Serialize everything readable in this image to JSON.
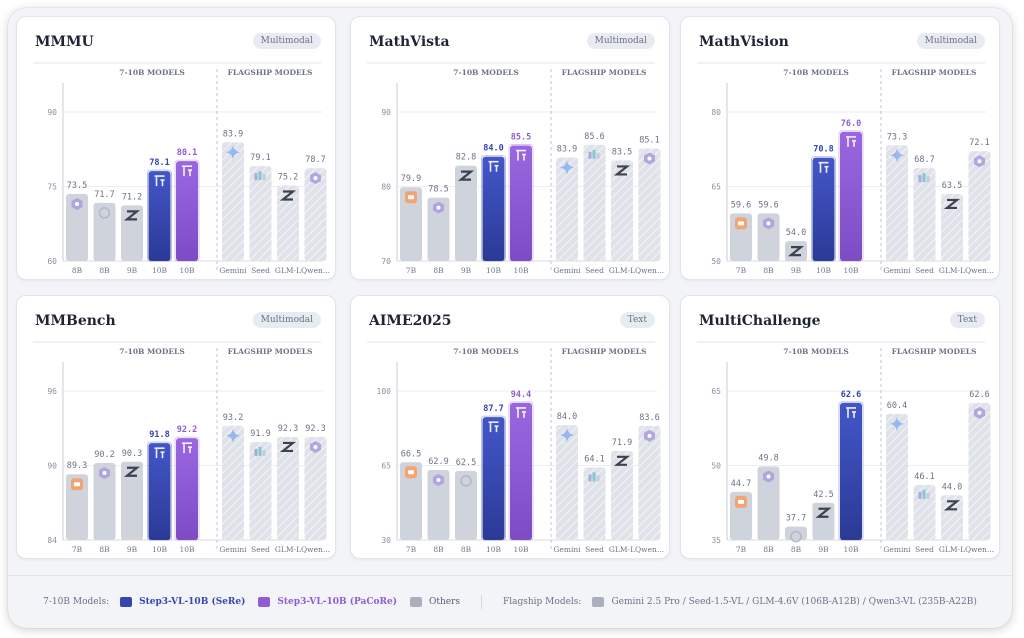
{
  "colors": {
    "sere": "#3546b0",
    "pacore": "#8f5cd6",
    "others": "#cfd3dc",
    "flagship": "#dfe2e9"
  },
  "legend": {
    "group1_label": "7-10B Models:",
    "sere_label": "Step3-VL-10B (SeRe)",
    "pacore_label": "Step3-VL-10B (PaCoRe)",
    "others_label": "Others",
    "group2_label": "Flagship Models:",
    "flagship_text": "Gemini 2.5 Pro / Seed-1.5-VL / GLM-4.6V (106B-A12B) / Qwen3-VL (235B-A22B)"
  },
  "chart_data": [
    {
      "title": "MMMU",
      "badge": "Multimodal",
      "type": "bar",
      "yticks": [
        60,
        75,
        90
      ],
      "ylim": [
        60,
        90
      ],
      "group_labels": [
        "7-10B MODELS",
        "FLAGSHIP MODELS"
      ],
      "bars": [
        {
          "label": "8B",
          "value": 73.5,
          "kind": "other",
          "icon": "qwen-icon"
        },
        {
          "label": "8B",
          "value": 71.7,
          "kind": "other",
          "icon": "intern-icon"
        },
        {
          "label": "9B",
          "value": 71.2,
          "kind": "other",
          "icon": "glm-icon"
        },
        {
          "label": "10B",
          "value": 78.1,
          "kind": "sere",
          "icon": "step-icon"
        },
        {
          "label": "10B",
          "value": 80.1,
          "kind": "pacore",
          "icon": "step-icon"
        },
        {
          "label": "Gemini",
          "value": 83.9,
          "kind": "flagship",
          "icon": "gemini-icon"
        },
        {
          "label": "Seed",
          "value": 79.1,
          "kind": "flagship",
          "icon": "seed-icon"
        },
        {
          "label": "GLM-L",
          "value": 75.2,
          "kind": "flagship",
          "icon": "glm-icon"
        },
        {
          "label": "Qwen...",
          "value": 78.7,
          "kind": "flagship",
          "icon": "qwen-icon"
        }
      ]
    },
    {
      "title": "MathVista",
      "badge": "Multimodal",
      "type": "bar",
      "yticks": [
        70,
        80,
        90
      ],
      "ylim": [
        70,
        90
      ],
      "group_labels": [
        "7-10B MODELS",
        "FLAGSHIP MODELS"
      ],
      "bars": [
        {
          "label": "7B",
          "value": 79.9,
          "kind": "other",
          "icon": "mimo-icon"
        },
        {
          "label": "8B",
          "value": 78.5,
          "kind": "other",
          "icon": "qwen-icon"
        },
        {
          "label": "9B",
          "value": 82.8,
          "kind": "other",
          "icon": "glm-icon"
        },
        {
          "label": "10B",
          "value": 84.0,
          "kind": "sere",
          "icon": "step-icon"
        },
        {
          "label": "10B",
          "value": 85.5,
          "kind": "pacore",
          "icon": "step-icon"
        },
        {
          "label": "Gemini",
          "value": 83.9,
          "kind": "flagship",
          "icon": "gemini-icon"
        },
        {
          "label": "Seed",
          "value": 85.6,
          "kind": "flagship",
          "icon": "seed-icon"
        },
        {
          "label": "GLM-L",
          "value": 83.5,
          "kind": "flagship",
          "icon": "glm-icon"
        },
        {
          "label": "Qwen...",
          "value": 85.1,
          "kind": "flagship",
          "icon": "qwen-icon"
        }
      ]
    },
    {
      "title": "MathVision",
      "badge": "Multimodal",
      "type": "bar",
      "yticks": [
        50,
        65,
        80
      ],
      "ylim": [
        50,
        80
      ],
      "group_labels": [
        "7-10B MODELS",
        "FLAGSHIP MODELS"
      ],
      "bars": [
        {
          "label": "7B",
          "value": 59.6,
          "kind": "other",
          "icon": "mimo-icon"
        },
        {
          "label": "8B",
          "value": 59.6,
          "kind": "other",
          "icon": "qwen-icon"
        },
        {
          "label": "9B",
          "value": 54.0,
          "kind": "other",
          "icon": "glm-icon"
        },
        {
          "label": "10B",
          "value": 70.8,
          "kind": "sere",
          "icon": "step-icon"
        },
        {
          "label": "10B",
          "value": 76.0,
          "kind": "pacore",
          "icon": "step-icon"
        },
        {
          "label": "Gemini",
          "value": 73.3,
          "kind": "flagship",
          "icon": "gemini-icon"
        },
        {
          "label": "Seed",
          "value": 68.7,
          "kind": "flagship",
          "icon": "seed-icon"
        },
        {
          "label": "GLM-L",
          "value": 63.5,
          "kind": "flagship",
          "icon": "glm-icon"
        },
        {
          "label": "Qwen...",
          "value": 72.1,
          "kind": "flagship",
          "icon": "qwen-icon"
        }
      ]
    },
    {
      "title": "MMBench",
      "badge": "Multimodal",
      "type": "bar",
      "yticks": [
        84,
        90,
        96
      ],
      "ylim": [
        84,
        96
      ],
      "group_labels": [
        "7-10B MODELS",
        "FLAGSHIP MODELS"
      ],
      "bars": [
        {
          "label": "7B",
          "value": 89.3,
          "kind": "other",
          "icon": "mimo-icon"
        },
        {
          "label": "8B",
          "value": 90.2,
          "kind": "other",
          "icon": "qwen-icon"
        },
        {
          "label": "9B",
          "value": 90.3,
          "kind": "other",
          "icon": "glm-icon"
        },
        {
          "label": "10B",
          "value": 91.8,
          "kind": "sere",
          "icon": "step-icon"
        },
        {
          "label": "10B",
          "value": 92.2,
          "kind": "pacore",
          "icon": "step-icon"
        },
        {
          "label": "Gemini",
          "value": 93.2,
          "kind": "flagship",
          "icon": "gemini-icon"
        },
        {
          "label": "Seed",
          "value": 91.9,
          "kind": "flagship",
          "icon": "seed-icon"
        },
        {
          "label": "GLM-L",
          "value": 92.3,
          "kind": "flagship",
          "icon": "glm-icon"
        },
        {
          "label": "Qwen...",
          "value": 92.3,
          "kind": "flagship",
          "icon": "qwen-icon"
        }
      ]
    },
    {
      "title": "AIME2025",
      "badge": "Text",
      "type": "bar",
      "yticks": [
        30,
        65,
        100
      ],
      "ylim": [
        30,
        100
      ],
      "group_labels": [
        "7-10B MODELS",
        "FLAGSHIP MODELS"
      ],
      "bars": [
        {
          "label": "7B",
          "value": 66.5,
          "kind": "other",
          "icon": "mimo-icon"
        },
        {
          "label": "8B",
          "value": 62.9,
          "kind": "other",
          "icon": "qwen-icon"
        },
        {
          "label": "8B",
          "value": 62.5,
          "kind": "other",
          "icon": "intern-icon"
        },
        {
          "label": "10B",
          "value": 87.7,
          "kind": "sere",
          "icon": "step-icon"
        },
        {
          "label": "10B",
          "value": 94.4,
          "kind": "pacore",
          "icon": "step-icon"
        },
        {
          "label": "Gemini",
          "value": 84.0,
          "kind": "flagship",
          "icon": "gemini-icon"
        },
        {
          "label": "Seed",
          "value": 64.1,
          "kind": "flagship",
          "icon": "seed-icon"
        },
        {
          "label": "GLM-L",
          "value": 71.9,
          "kind": "flagship",
          "icon": "glm-icon"
        },
        {
          "label": "Qwen...",
          "value": 83.6,
          "kind": "flagship",
          "icon": "qwen-icon"
        }
      ]
    },
    {
      "title": "MultiChallenge",
      "badge": "Text",
      "type": "bar",
      "yticks": [
        35,
        50,
        65
      ],
      "ylim": [
        35,
        65
      ],
      "group_labels": [
        "7-10B MODELS",
        "FLAGSHIP MODELS"
      ],
      "bars": [
        {
          "label": "7B",
          "value": 44.7,
          "kind": "other",
          "icon": "mimo-icon"
        },
        {
          "label": "8B",
          "value": 49.8,
          "kind": "other",
          "icon": "qwen-icon"
        },
        {
          "label": "8B",
          "value": 37.7,
          "kind": "other",
          "icon": "intern-icon"
        },
        {
          "label": "9B",
          "value": 42.5,
          "kind": "other",
          "icon": "glm-icon"
        },
        {
          "label": "10B",
          "value": 62.6,
          "kind": "sere",
          "icon": "step-icon"
        },
        {
          "label": "Gemini",
          "value": 60.4,
          "kind": "flagship",
          "icon": "gemini-icon"
        },
        {
          "label": "Seed",
          "value": 46.1,
          "kind": "flagship",
          "icon": "seed-icon"
        },
        {
          "label": "GLM-L",
          "value": 44.0,
          "kind": "flagship",
          "icon": "glm-icon"
        },
        {
          "label": "Qwen...",
          "value": 62.6,
          "kind": "flagship",
          "icon": "qwen-icon"
        }
      ]
    }
  ]
}
